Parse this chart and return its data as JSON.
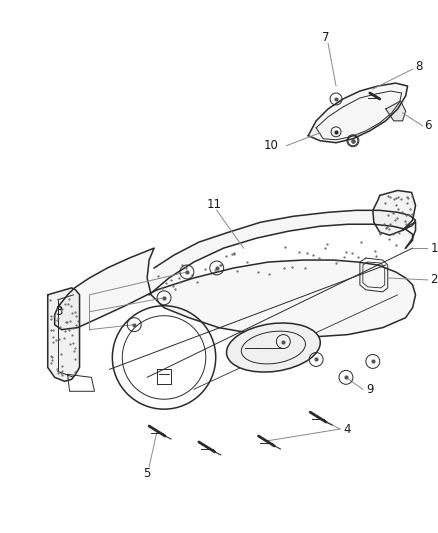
{
  "background_color": "#ffffff",
  "figure_width": 4.38,
  "figure_height": 5.33,
  "dpi": 100,
  "line_color": "#2a2a2a",
  "text_color": "#1a1a1a",
  "label_fontsize": 8.5,
  "dot_color": "#444444",
  "label_line_color": "#888888"
}
